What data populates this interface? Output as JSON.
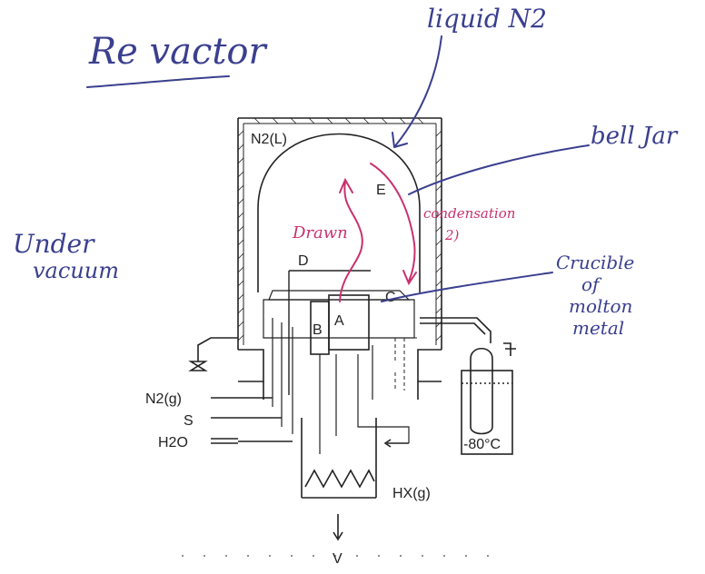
{
  "annotations": {
    "title": "Re vactor",
    "liquid_n2": "liquid N2",
    "bell_jar": "bell Jar",
    "under_vacuum_line1": "Under",
    "under_vacuum_line2": "vacuum",
    "crucible_line1": "Crucible",
    "crucible_line2": "of",
    "crucible_line3": "molton",
    "crucible_line4": "metal",
    "drawn": "Drawn",
    "condensation_line1": "condensation",
    "condensation_line2": "2)"
  },
  "diagram_labels": {
    "n2_liquid": "N2(L)",
    "e": "E",
    "d": "D",
    "c": "C",
    "a": "A",
    "b": "B",
    "n2_gas": "N2(g)",
    "s": "S",
    "h2o": "H2O",
    "hx_gas": "HX(g)",
    "v": "V",
    "cold_trap_temp": "-80°C"
  },
  "colors": {
    "handwriting_blue": "#3a3f8f",
    "handwriting_pink": "#c8316f",
    "print_ink": "#222222"
  }
}
